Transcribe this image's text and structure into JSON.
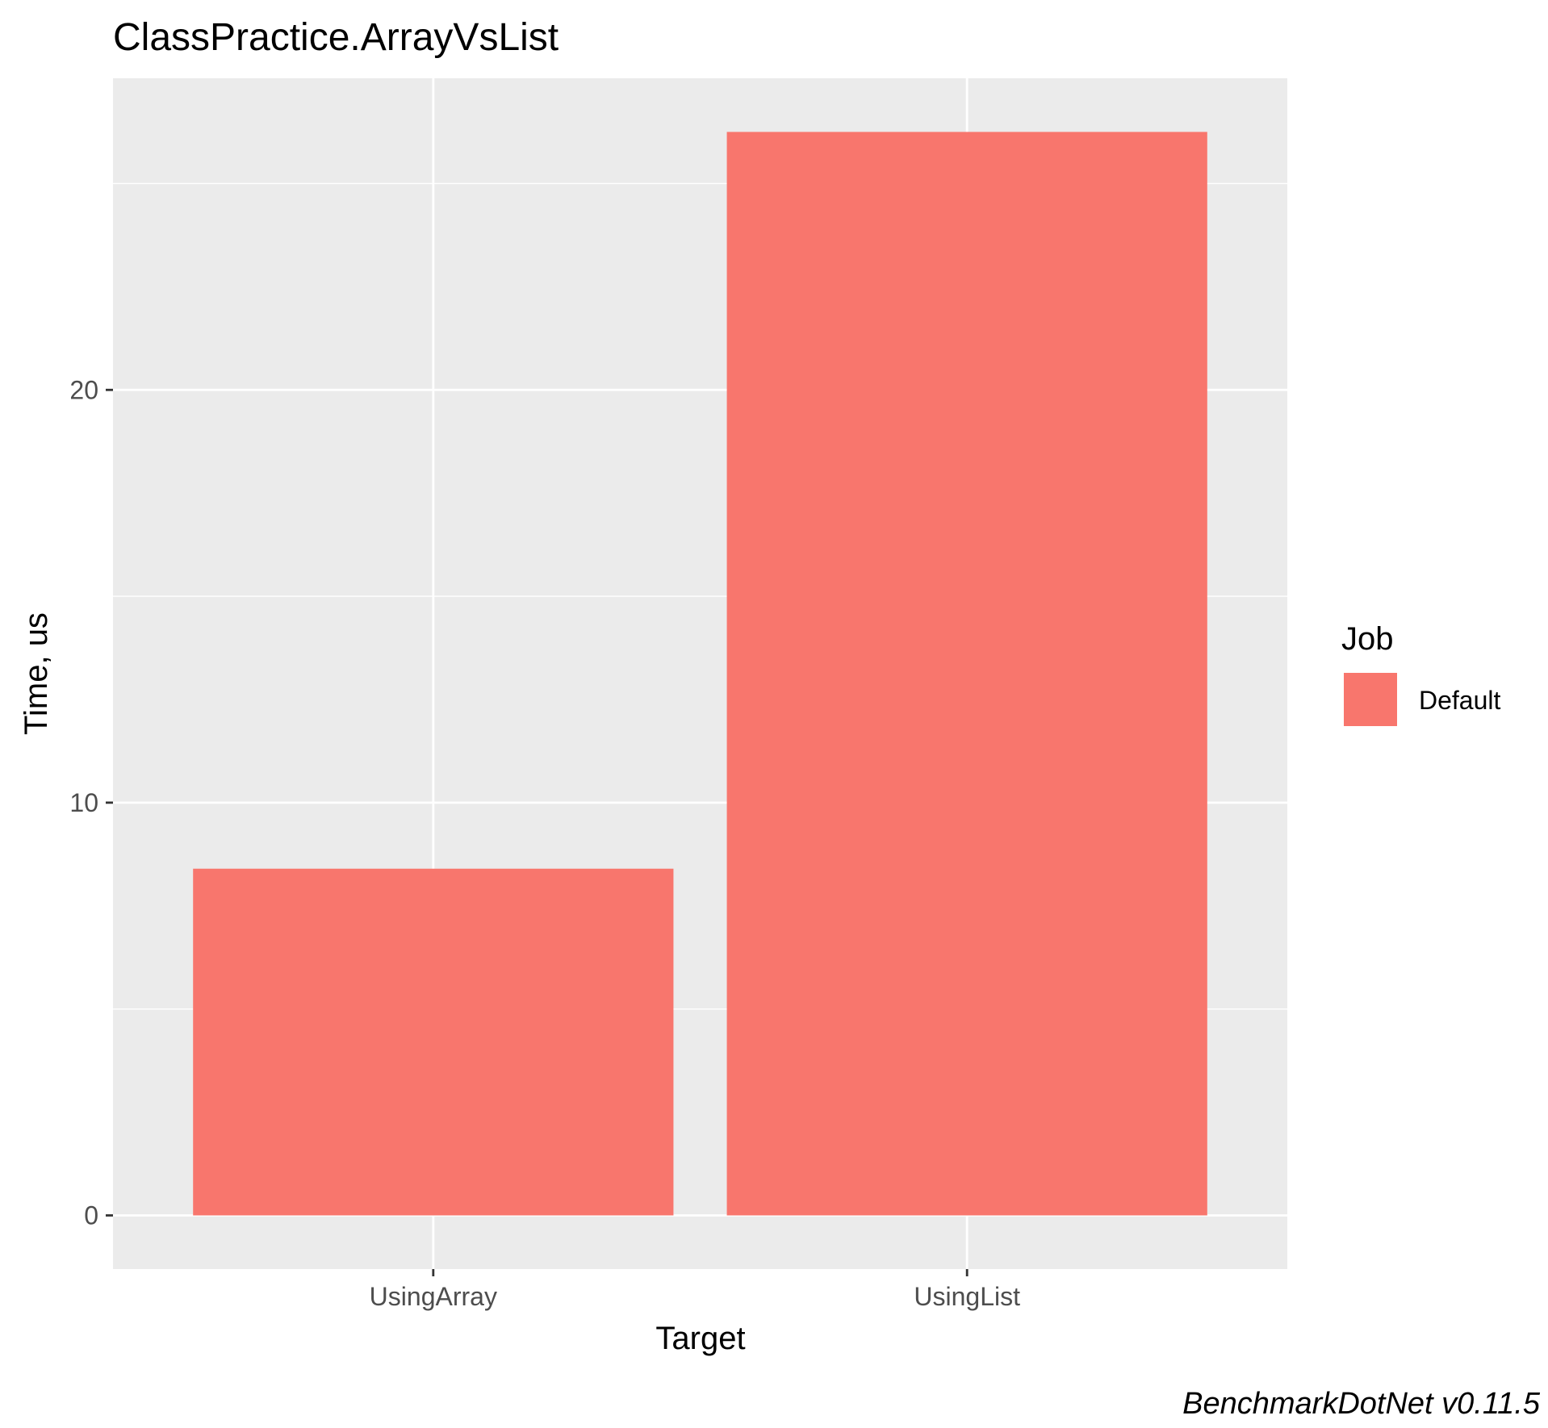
{
  "chart_data": {
    "type": "bar",
    "title": "ClassPractice.ArrayVsList",
    "xlabel": "Target",
    "ylabel": "Time, us",
    "categories": [
      "UsingArray",
      "UsingList"
    ],
    "series": [
      {
        "name": "Default",
        "values": [
          8.4,
          26.25
        ]
      }
    ],
    "ylim": [
      -1.3,
      27.55
    ],
    "yticks": [
      0,
      10,
      20
    ],
    "y_minor_gridlines": [
      5,
      15,
      25
    ],
    "grid": true,
    "legend": {
      "title": "Job",
      "position": "right",
      "entries": [
        "Default"
      ]
    },
    "caption": "BenchmarkDotNet v0.11.5",
    "colors": {
      "bar": "#F8766D",
      "panel": "#EBEBEB",
      "grid": "#FFFFFF",
      "text": "#000000",
      "tick_text": "#4D4D4D",
      "tick_mark": "#333333"
    }
  }
}
